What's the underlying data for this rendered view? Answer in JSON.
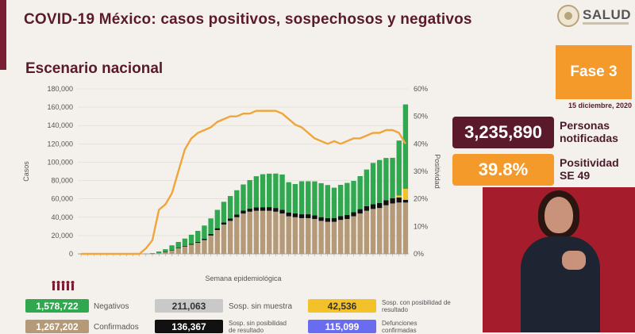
{
  "header": {
    "title": "COVID-19 México: casos positivos, sospechosos y negativos",
    "subtitle": "Escenario nacional",
    "logo_text": "SALUD"
  },
  "side": {
    "phase": "Fase 3",
    "date": "15 diciembre, 2020",
    "notified_value": "3,235,890",
    "notified_label": "Personas notificadas",
    "positivity_value": "39.8%",
    "positivity_label": "Positividad SE 49",
    "colors": {
      "maroon": "#5a1a2c",
      "orange": "#f39a2a"
    }
  },
  "legend": {
    "items": [
      {
        "value": "1,578,722",
        "label": "Negativos",
        "color": "#2fa84f"
      },
      {
        "value": "1,267,202",
        "label": "Confirmados",
        "color": "#b49a78"
      },
      {
        "value": "211,063",
        "label": "Sosp. sin muestra",
        "color": "#c9c9c9"
      },
      {
        "value": "136,367",
        "label": "Sosp. sin posibilidad de resultado",
        "color": "#111111"
      },
      {
        "value": "42,536",
        "label": "Sosp. con posibilidad de resultado",
        "color": "#f3c12a"
      },
      {
        "value": "115,099",
        "label": "Defunciones confirmadas",
        "color": "#6a6cf0"
      }
    ]
  },
  "chart_data": {
    "type": "bar",
    "stacked": true,
    "xlabel": "Semana epidemiológica",
    "ylabel": "Casos",
    "y2label": "Positividad",
    "ylim": [
      0,
      180000
    ],
    "y2lim": [
      0,
      60
    ],
    "yticks": [
      "0",
      "20,000",
      "40,000",
      "60,000",
      "80,000",
      "100,000",
      "120,000",
      "140,000",
      "160,000",
      "180,000"
    ],
    "y2ticks": [
      "0%",
      "10%",
      "20%",
      "30%",
      "40%",
      "50%",
      "60%"
    ],
    "weeks": 51,
    "series": [
      {
        "name": "Confirmados",
        "color": "#b49a78",
        "values": [
          100,
          100,
          100,
          100,
          100,
          100,
          100,
          100,
          100,
          100,
          100,
          200,
          800,
          2000,
          4000,
          6000,
          8000,
          10000,
          12000,
          15000,
          20000,
          26000,
          32000,
          36000,
          40000,
          44000,
          46000,
          47000,
          47000,
          47000,
          46000,
          44000,
          41000,
          40000,
          39000,
          39000,
          38000,
          36000,
          35000,
          35000,
          37000,
          38000,
          41000,
          44000,
          47000,
          49000,
          50000,
          53000,
          55000,
          56000,
          56000
        ]
      },
      {
        "name": "Sosp. sin posibilidad de resultado",
        "color": "#111111",
        "values": [
          0,
          0,
          0,
          0,
          0,
          0,
          0,
          0,
          0,
          0,
          0,
          0,
          0,
          100,
          300,
          500,
          700,
          900,
          1100,
          1400,
          1700,
          2000,
          2300,
          2600,
          2900,
          3200,
          3500,
          3700,
          3900,
          4000,
          4100,
          4100,
          4200,
          4200,
          4200,
          4200,
          4100,
          4100,
          4100,
          4200,
          4300,
          4400,
          4600,
          4800,
          5000,
          5200,
          5400,
          5600,
          5800,
          5600,
          3000
        ]
      },
      {
        "name": "Sosp. con posibilidad de resultado",
        "color": "#f3c12a",
        "values": [
          0,
          0,
          0,
          0,
          0,
          0,
          0,
          0,
          0,
          0,
          0,
          0,
          0,
          0,
          0,
          0,
          0,
          0,
          0,
          0,
          0,
          0,
          0,
          0,
          0,
          0,
          0,
          0,
          0,
          0,
          0,
          0,
          0,
          0,
          0,
          0,
          0,
          0,
          0,
          0,
          0,
          0,
          0,
          0,
          0,
          0,
          0,
          0,
          0,
          2000,
          12000
        ]
      },
      {
        "name": "Negativos",
        "color": "#2fa84f",
        "values": [
          200,
          200,
          200,
          200,
          200,
          200,
          200,
          200,
          200,
          200,
          300,
          700,
          1800,
          3000,
          5000,
          6500,
          8000,
          10000,
          12000,
          14500,
          17000,
          20000,
          22500,
          24500,
          26500,
          28500,
          31000,
          34000,
          36000,
          36500,
          37500,
          38500,
          33000,
          32000,
          36000,
          36000,
          37000,
          37000,
          36000,
          33000,
          34000,
          35000,
          34000,
          36000,
          40000,
          45000,
          47000,
          46000,
          44000,
          60000,
          92000
        ]
      }
    ],
    "positivity": [
      0,
      0,
      0,
      0,
      0,
      0,
      0,
      0,
      0,
      0,
      2,
      5,
      16,
      18,
      22,
      30,
      38,
      42,
      44,
      45,
      46,
      48,
      49,
      50,
      50,
      51,
      51,
      52,
      52,
      52,
      52,
      51,
      49,
      47,
      46,
      44,
      42,
      41,
      40,
      41,
      40,
      41,
      42,
      42,
      43,
      44,
      44,
      45,
      45,
      44,
      40
    ]
  }
}
